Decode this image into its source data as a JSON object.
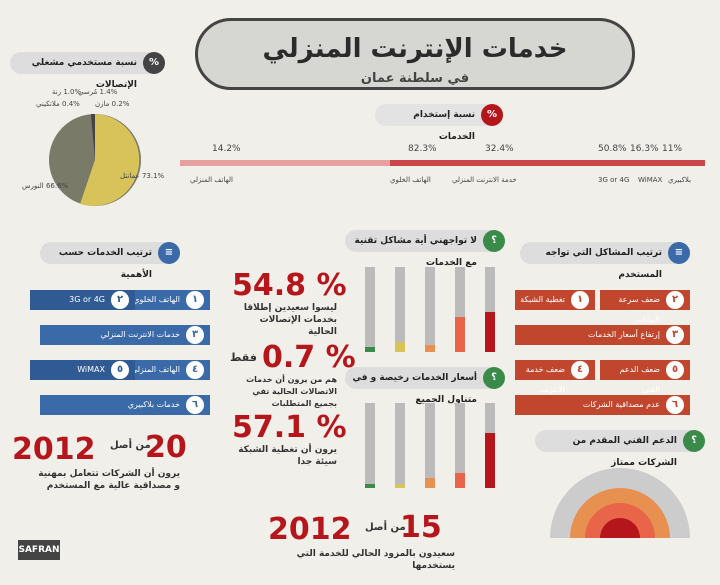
{
  "header": {
    "title": "خدمات الإنترنت المنزلي",
    "subtitle": "في سلطنة عمان"
  },
  "share_section": {
    "icon": "%",
    "label": "نسبة مستخدمي مشغلي الإتصالات"
  },
  "pie": {
    "slices": [
      {
        "label": "عمانتل",
        "value": "73.1%",
        "color": "#d8c25a"
      },
      {
        "label": "النورس",
        "value": "66.6%",
        "color": "#7a7a68"
      },
      {
        "label": "مازن",
        "value": "0.2%",
        "color": "#555"
      },
      {
        "label": "مُرسي",
        "value": "1.4%",
        "color": "#999"
      },
      {
        "label": "رنة",
        "value": "1.0%",
        "color": "#bbb"
      },
      {
        "label": "ملاتكيني",
        "value": "0.4%",
        "color": "#777"
      }
    ]
  },
  "usage_section": {
    "icon": "%",
    "label": "نسبة إستخدام الخدمات"
  },
  "usage": [
    {
      "value": "11%",
      "label": "بلاكبيري"
    },
    {
      "value": "16.3%",
      "label": "WiMAX"
    },
    {
      "value": "50.8%",
      "label": "3G or 4G"
    },
    {
      "value": "32.4%",
      "label": "خدمة الانترنت المنزلي"
    },
    {
      "value": "82.3%",
      "label": "الهاتف الخلوي"
    },
    {
      "value": "14.2%",
      "label": "الهاتف المنزلي"
    }
  ],
  "ranking": {
    "label": "ترتيب الخدمات حسب الأهمية",
    "items": [
      {
        "n": "١",
        "label": "الهاتف الخلوي"
      },
      {
        "n": "٢",
        "label": "3G or 4G"
      },
      {
        "n": "٣",
        "label": "خدمات الانترنت المنزلي"
      },
      {
        "n": "٤",
        "label": "الهاتف المنزلي"
      },
      {
        "n": "٥",
        "label": "WiMAX"
      },
      {
        "n": "٦",
        "label": "خدمات بلاكبيري"
      }
    ]
  },
  "stats": [
    {
      "pct": "54.8 %",
      "text": "ليسوا سعيدين إطلاقا بخدمات الإتصالات الحالية"
    },
    {
      "pct": "0.7 %",
      "text": "هم من يرون أن خدمات الاتصالات الحالية تفي بجميع المتطلبات",
      "prefix": "فقط"
    },
    {
      "pct": "57.1 %",
      "text": "يرون أن تغطية الشبكة سيئة جدا"
    }
  ],
  "no_problems": {
    "label": "لا تواجهني أية مشاكل تقنية مع الخدمات"
  },
  "prices": {
    "label": "أسعار الخدمات رخيصة و في متناول الجميع"
  },
  "problems": {
    "label": "ترتيب المشاكل التي تواجه المستخدم",
    "items": [
      {
        "n": "١",
        "label": "تغطية الشبكة"
      },
      {
        "n": "٢",
        "label": "ضعف سرعة البيانات"
      },
      {
        "n": "٣",
        "label": "إرتفاع أسعار الخدمات"
      },
      {
        "n": "٤",
        "label": "ضعف خدمة الانترنت المنزلي"
      },
      {
        "n": "٥",
        "label": "ضعف الدعم الفني"
      },
      {
        "n": "٦",
        "label": "عدم مصداقية الشركات"
      }
    ]
  },
  "support": {
    "label": "الدعم الفني المقدم من الشركات ممتاز"
  },
  "left_stat": {
    "big": "20",
    "from": "من أصل",
    "total": "2012",
    "text": "يرون أن الشركات تتعامل بمهنية و مصداقية عالية مع المستخدم"
  },
  "bottom_stat": {
    "big": "15",
    "from": "من أصل",
    "total": "2012",
    "text": "سعيدون بالمزود الحالي للخدمة التي يستخدمها"
  },
  "footer": {
    "brand": "SAFRAN"
  },
  "colors": {
    "red": "#b5161b",
    "blue": "#3a6aa8",
    "orange": "#c0472e",
    "dark": "#333"
  }
}
